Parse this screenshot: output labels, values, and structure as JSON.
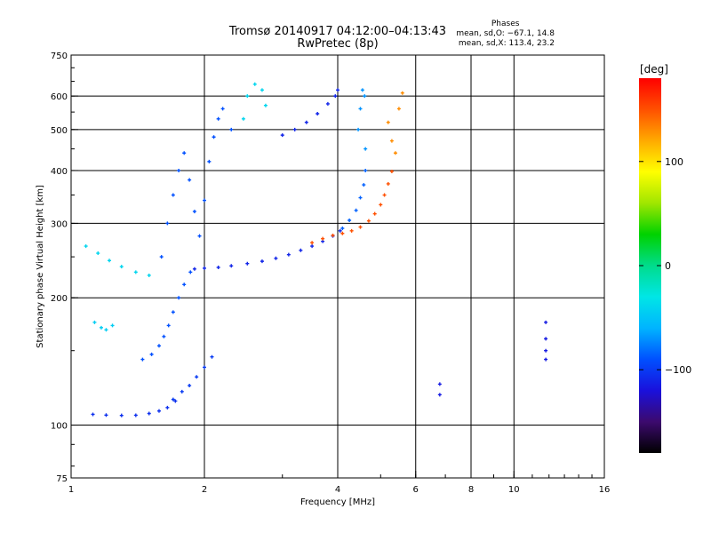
{
  "header": {
    "title": "Tromsø 20140917 04:12:00–04:13:43",
    "subtitle": "RwPretec (8p)"
  },
  "phase_stats": {
    "label": "Phases",
    "line_o": "mean, sd,O: −67.1, 14.8",
    "line_x": "mean, sd,X: 113.4, 23.2"
  },
  "chart_data": {
    "type": "scatter",
    "xlabel": "Frequency [MHz]",
    "ylabel": "Stationary phase Virtual Height [km]",
    "xscale": "log",
    "yscale": "log",
    "xlim": [
      1,
      16
    ],
    "ylim": [
      75,
      750
    ],
    "xticks": [
      1,
      2,
      4,
      6,
      8,
      10,
      16
    ],
    "xtick_labels": [
      "1",
      "2",
      "4",
      "6",
      "8",
      "10",
      "16"
    ],
    "yticks": [
      75,
      100,
      200,
      300,
      400,
      500,
      600,
      750
    ],
    "ytick_labels": [
      "75",
      "100",
      "200",
      "300",
      "400",
      "500",
      "600",
      "750"
    ],
    "grid_x": [
      2,
      4,
      6,
      8,
      10
    ],
    "grid_y": [
      100,
      200,
      300,
      400,
      500,
      600
    ],
    "colorbar": {
      "label": "[deg]",
      "range": [
        -180,
        180
      ],
      "ticks": [
        100,
        0,
        -100
      ],
      "tick_labels": [
        "100",
        "0",
        "−100"
      ],
      "colors": [
        "#000000",
        "#3c0a6e",
        "#1a10dc",
        "#0050ff",
        "#00b4ff",
        "#00e6e6",
        "#00dc8c",
        "#00d200",
        "#a0e600",
        "#ffff00",
        "#ffaa00",
        "#ff5000",
        "#ff0000"
      ]
    },
    "series": [
      {
        "phase": -105,
        "points": [
          [
            1.12,
            106
          ],
          [
            1.2,
            105.6
          ],
          [
            1.3,
            105.4
          ],
          [
            1.4,
            105.5
          ],
          [
            1.5,
            106.5
          ],
          [
            1.58,
            108
          ],
          [
            1.65,
            110
          ],
          [
            1.72,
            114
          ]
        ]
      },
      {
        "phase": -100,
        "points": [
          [
            1.7,
            115
          ],
          [
            1.78,
            120
          ],
          [
            1.85,
            124
          ],
          [
            1.92,
            130
          ],
          [
            2.0,
            137
          ],
          [
            2.08,
            145
          ]
        ]
      },
      {
        "phase": -90,
        "points": [
          [
            1.45,
            143
          ],
          [
            1.52,
            147
          ],
          [
            1.58,
            154
          ],
          [
            1.62,
            162
          ],
          [
            1.66,
            172
          ],
          [
            1.7,
            185
          ],
          [
            1.75,
            200
          ],
          [
            1.8,
            215
          ],
          [
            1.86,
            230
          ]
        ]
      },
      {
        "phase": -110,
        "points": [
          [
            1.9,
            234
          ],
          [
            2.0,
            235
          ],
          [
            2.15,
            236
          ],
          [
            2.3,
            238
          ],
          [
            2.5,
            241
          ],
          [
            2.7,
            244
          ],
          [
            2.9,
            248
          ],
          [
            3.1,
            253
          ],
          [
            3.3,
            259
          ],
          [
            3.5,
            265
          ],
          [
            3.7,
            272
          ],
          [
            3.9,
            280
          ],
          [
            4.05,
            288
          ]
        ]
      },
      {
        "phase": 150,
        "points": [
          [
            3.5,
            270
          ],
          [
            3.7,
            276
          ],
          [
            3.9,
            281
          ],
          [
            4.1,
            284
          ],
          [
            4.3,
            288
          ],
          [
            4.5,
            294
          ],
          [
            4.7,
            304
          ],
          [
            4.85,
            316
          ],
          [
            5.0,
            332
          ],
          [
            5.1,
            350
          ],
          [
            5.2,
            372
          ],
          [
            5.3,
            398
          ]
        ]
      },
      {
        "phase": -85,
        "points": [
          [
            4.1,
            292
          ],
          [
            4.25,
            305
          ],
          [
            4.4,
            322
          ],
          [
            4.5,
            345
          ],
          [
            4.58,
            370
          ],
          [
            4.62,
            400
          ]
        ]
      },
      {
        "phase": -110,
        "points": [
          [
            3.0,
            485
          ],
          [
            3.2,
            500
          ],
          [
            3.4,
            520
          ],
          [
            3.6,
            545
          ],
          [
            3.8,
            575
          ],
          [
            3.95,
            600
          ],
          [
            4.0,
            620
          ]
        ]
      },
      {
        "phase": -90,
        "points": [
          [
            1.6,
            250
          ],
          [
            1.65,
            300
          ],
          [
            1.7,
            350
          ],
          [
            1.75,
            400
          ],
          [
            1.8,
            440
          ],
          [
            1.85,
            380
          ],
          [
            1.9,
            320
          ],
          [
            1.95,
            280
          ],
          [
            2.0,
            340
          ],
          [
            2.05,
            420
          ],
          [
            2.1,
            480
          ],
          [
            2.15,
            530
          ],
          [
            2.2,
            560
          ],
          [
            2.3,
            500
          ]
        ]
      },
      {
        "phase": -40,
        "points": [
          [
            2.45,
            530
          ],
          [
            2.5,
            600
          ],
          [
            2.6,
            640
          ],
          [
            2.7,
            620
          ],
          [
            2.75,
            570
          ]
        ]
      },
      {
        "phase": -70,
        "points": [
          [
            4.45,
            500
          ],
          [
            4.5,
            560
          ],
          [
            4.55,
            620
          ],
          [
            4.6,
            600
          ],
          [
            4.62,
            450
          ]
        ]
      },
      {
        "phase": 130,
        "points": [
          [
            5.2,
            520
          ],
          [
            5.3,
            470
          ],
          [
            5.4,
            440
          ],
          [
            5.5,
            560
          ],
          [
            5.6,
            610
          ]
        ]
      },
      {
        "phase": -40,
        "points": [
          [
            1.08,
            265
          ],
          [
            1.15,
            255
          ],
          [
            1.22,
            245
          ],
          [
            1.3,
            237
          ],
          [
            1.4,
            230
          ],
          [
            1.5,
            226
          ]
        ]
      },
      {
        "phase": -45,
        "points": [
          [
            1.13,
            175
          ],
          [
            1.17,
            170
          ],
          [
            1.2,
            168
          ],
          [
            1.24,
            172
          ]
        ]
      },
      {
        "phase": -115,
        "points": [
          [
            6.8,
            125
          ],
          [
            6.8,
            118
          ],
          [
            11.8,
            175
          ],
          [
            11.8,
            160
          ],
          [
            11.8,
            150
          ],
          [
            11.8,
            143
          ]
        ]
      }
    ]
  }
}
